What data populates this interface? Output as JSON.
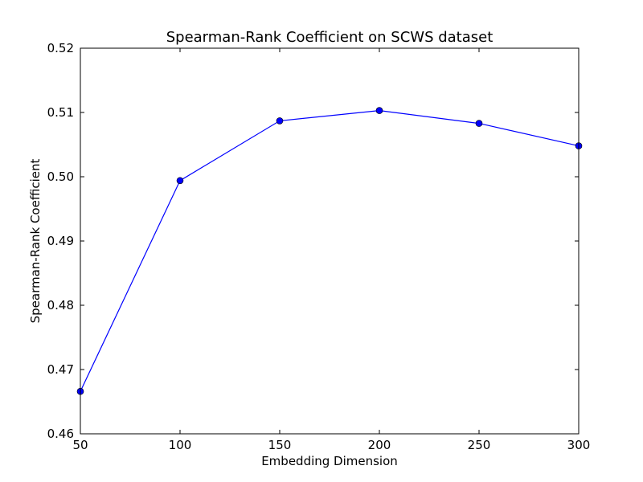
{
  "chart_data": {
    "type": "line",
    "title": "Spearman-Rank Coefficient on SCWS dataset",
    "xlabel": "Embedding Dimension",
    "ylabel": "Spearman-Rank Coefficient",
    "xlim": [
      50,
      300
    ],
    "ylim": [
      0.46,
      0.52
    ],
    "xticks": [
      "50",
      "100",
      "150",
      "200",
      "250",
      "300"
    ],
    "yticks": [
      "0.46",
      "0.47",
      "0.48",
      "0.49",
      "0.50",
      "0.51",
      "0.52"
    ],
    "grid": false,
    "series": [
      {
        "color": "#0000ff",
        "marker": "circle",
        "x": [
          50,
          100,
          150,
          200,
          250,
          300
        ],
        "y": [
          0.4666,
          0.4994,
          0.5087,
          0.5103,
          0.5083,
          0.5048
        ]
      }
    ]
  }
}
